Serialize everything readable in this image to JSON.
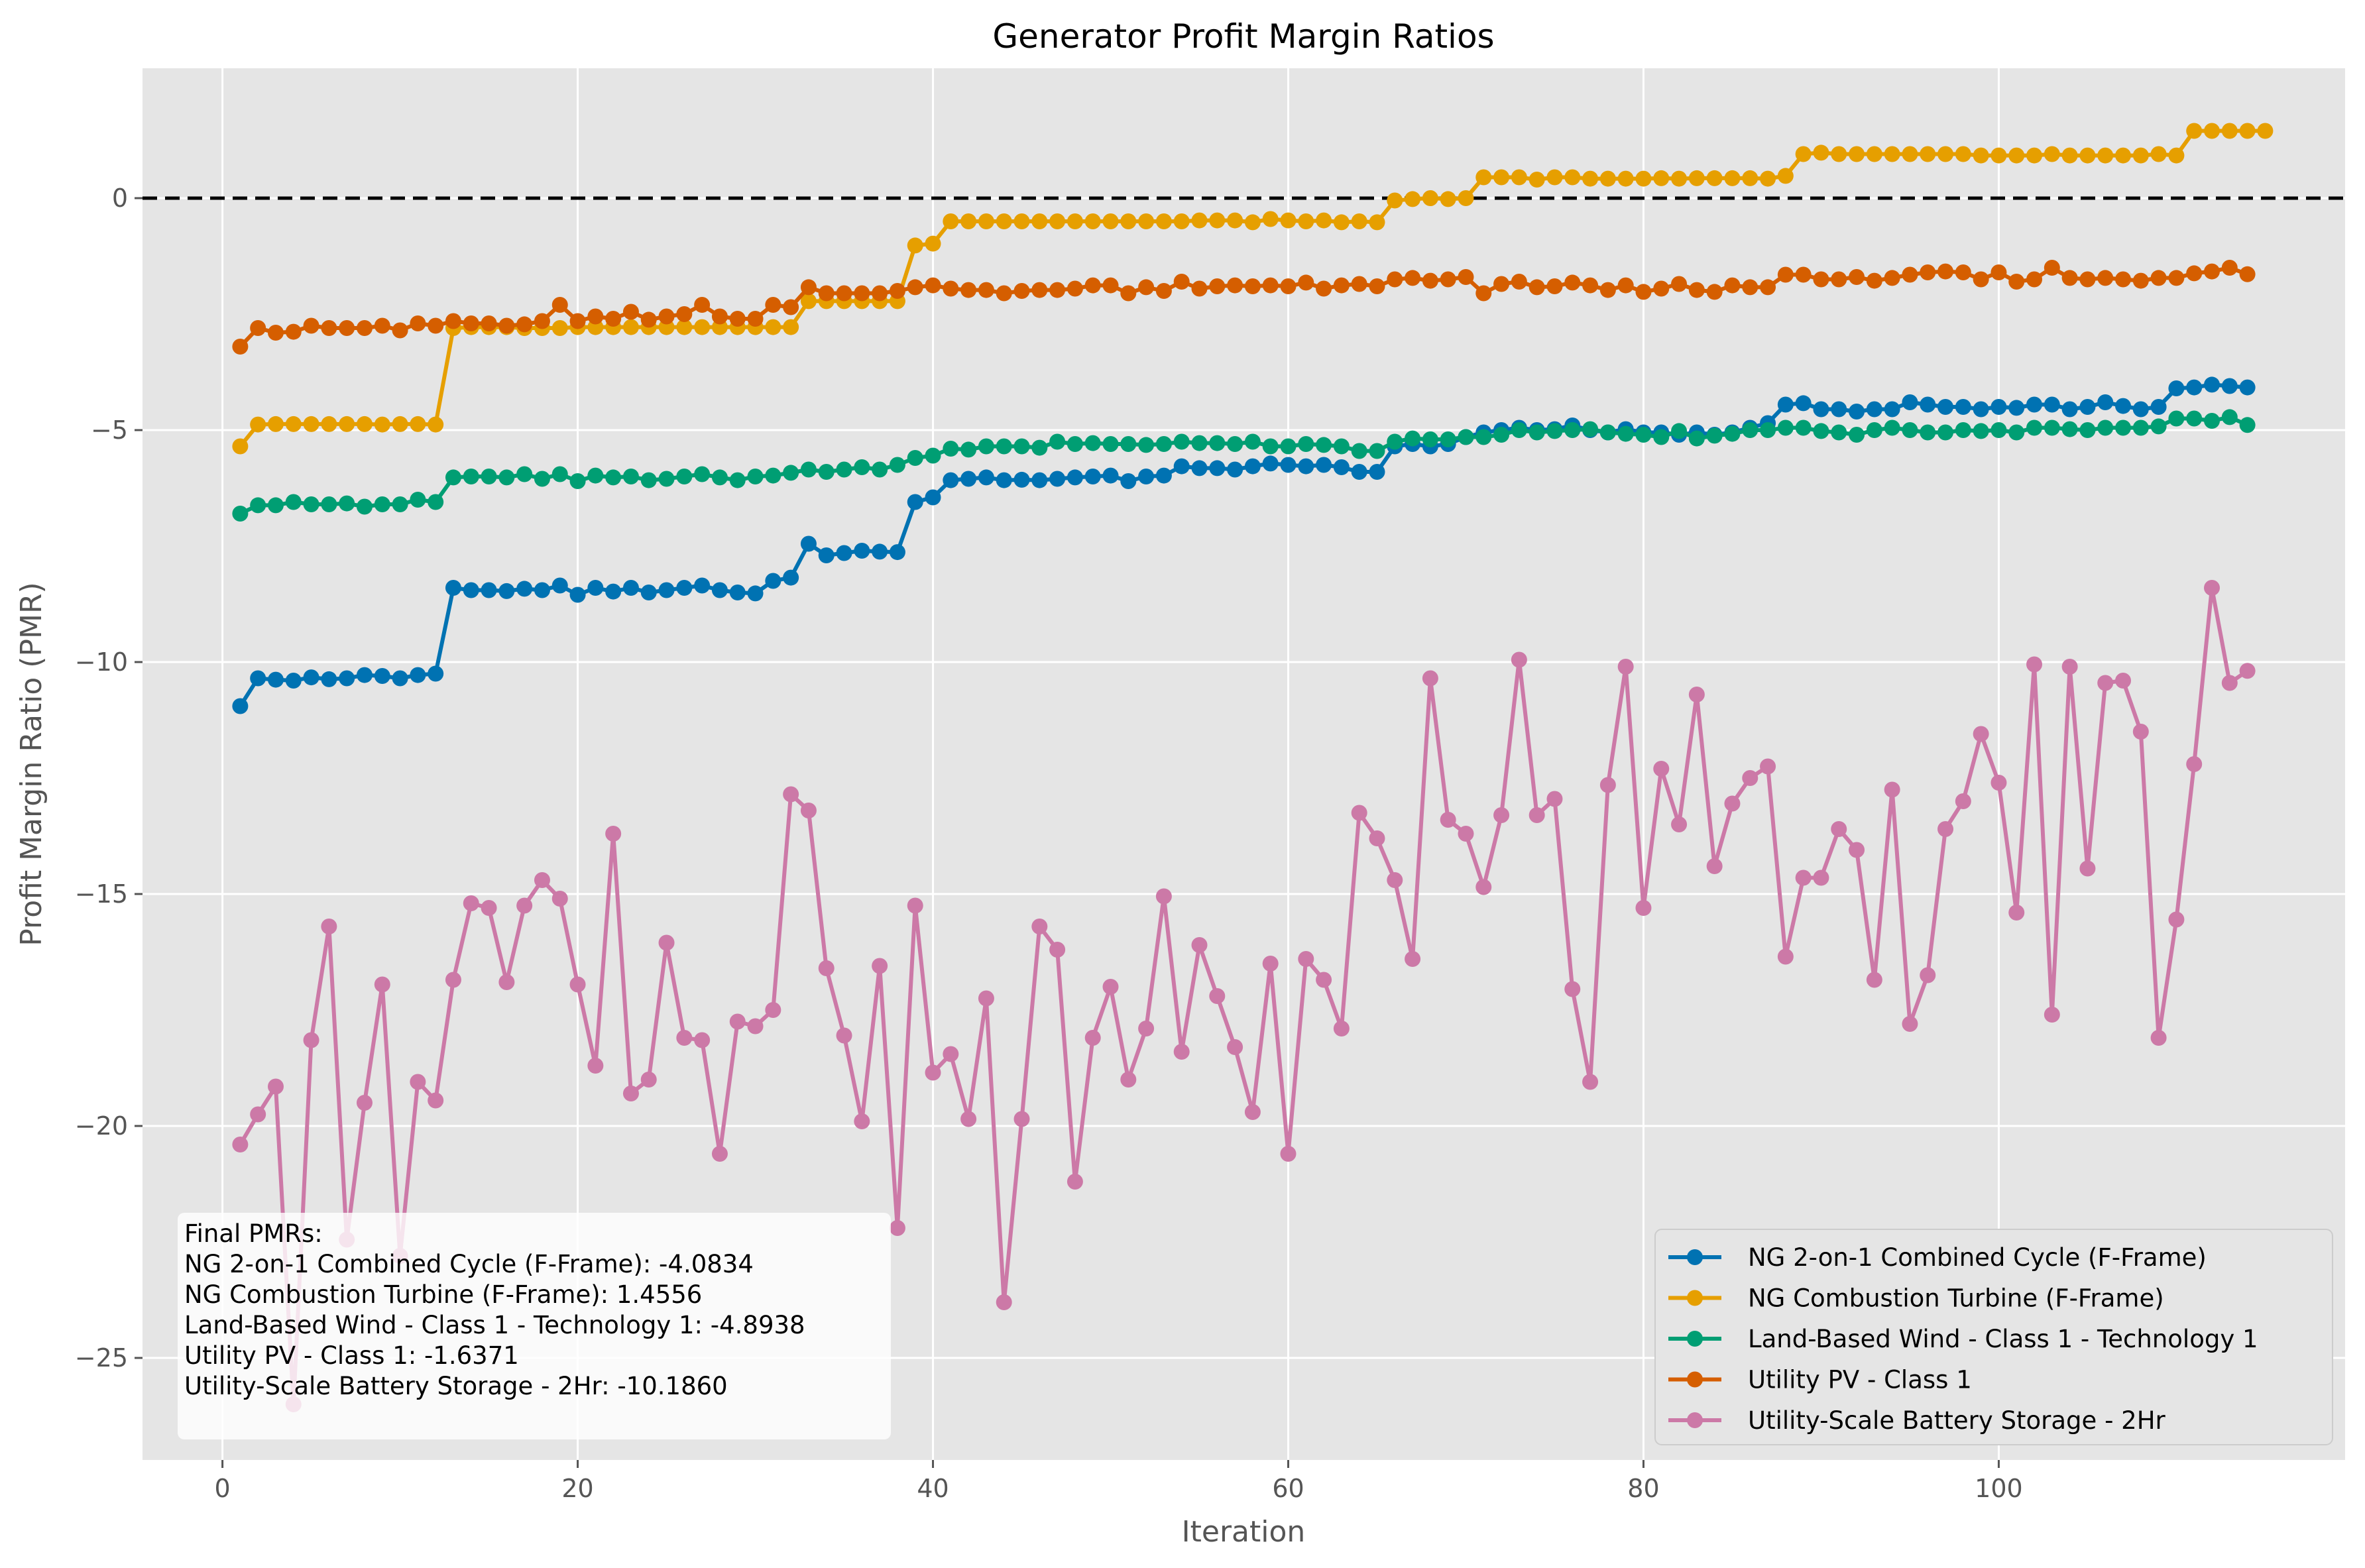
{
  "chart_data": {
    "type": "line",
    "title": "Generator Profit Margin Ratios",
    "xlabel": "Iteration",
    "ylabel": "Profit Margin Ratio (PMR)",
    "xlim": [
      -4.5,
      119.5
    ],
    "ylim": [
      -27.2,
      2.8
    ],
    "xticks": [
      0,
      20,
      40,
      60,
      80,
      100
    ],
    "yticks": [
      0,
      -5,
      -10,
      -15,
      -20,
      -25
    ],
    "grid": true,
    "reference_line": 0,
    "legend_position": "lower-right",
    "colors": {
      "background": "#e5e5e5",
      "grid": "#ffffff",
      "reference_line": "#000000"
    },
    "annotation": {
      "lines": [
        "Final PMRs:",
        "NG 2-on-1 Combined Cycle (F-Frame): -4.0834",
        "NG Combustion Turbine (F-Frame): 1.4556",
        "Land-Based Wind - Class 1 - Technology 1: -4.8938",
        "Utility PV - Class 1: -1.6371",
        "Utility-Scale Battery Storage - 2Hr: -10.1860"
      ]
    },
    "series": [
      {
        "name": "NG 2-on-1 Combined Cycle (F-Frame)",
        "color": "#0072b2",
        "values": [
          -10.95,
          -10.35,
          -10.38,
          -10.4,
          -10.33,
          -10.37,
          -10.35,
          -10.28,
          -10.3,
          -10.35,
          -10.28,
          -10.25,
          -8.4,
          -8.45,
          -8.45,
          -8.47,
          -8.42,
          -8.45,
          -8.35,
          -8.55,
          -8.4,
          -8.48,
          -8.4,
          -8.5,
          -8.45,
          -8.4,
          -8.35,
          -8.45,
          -8.5,
          -8.52,
          -8.25,
          -8.18,
          -7.45,
          -7.7,
          -7.65,
          -7.6,
          -7.62,
          -7.63,
          -6.55,
          -6.45,
          -6.08,
          -6.05,
          -6.02,
          -6.08,
          -6.07,
          -6.08,
          -6.05,
          -6.02,
          -6.0,
          -5.98,
          -6.1,
          -6.0,
          -5.98,
          -5.78,
          -5.82,
          -5.82,
          -5.85,
          -5.78,
          -5.72,
          -5.75,
          -5.78,
          -5.75,
          -5.8,
          -5.9,
          -5.9,
          -5.35,
          -5.3,
          -5.35,
          -5.3,
          -5.15,
          -5.05,
          -5.0,
          -4.95,
          -5.0,
          -4.98,
          -4.9,
          -5.0,
          -5.05,
          -4.98,
          -5.05,
          -5.05,
          -5.1,
          -5.05,
          -5.1,
          -5.05,
          -4.95,
          -4.85,
          -4.45,
          -4.42,
          -4.55,
          -4.55,
          -4.6,
          -4.55,
          -4.55,
          -4.4,
          -4.45,
          -4.5,
          -4.5,
          -4.55,
          -4.5,
          -4.52,
          -4.45,
          -4.45,
          -4.55,
          -4.5,
          -4.4,
          -4.48,
          -4.55,
          -4.5,
          -4.1,
          -4.08,
          -4.02,
          -4.05,
          -4.08
        ]
      },
      {
        "name": "NG Combustion Turbine (F-Frame)",
        "color": "#e69f00",
        "values": [
          -5.35,
          -4.88,
          -4.87,
          -4.87,
          -4.87,
          -4.87,
          -4.87,
          -4.87,
          -4.88,
          -4.87,
          -4.87,
          -4.88,
          -2.8,
          -2.78,
          -2.78,
          -2.78,
          -2.8,
          -2.8,
          -2.8,
          -2.78,
          -2.78,
          -2.78,
          -2.78,
          -2.78,
          -2.78,
          -2.78,
          -2.78,
          -2.78,
          -2.78,
          -2.78,
          -2.78,
          -2.78,
          -2.22,
          -2.22,
          -2.22,
          -2.22,
          -2.22,
          -2.22,
          -1.02,
          -0.98,
          -0.5,
          -0.5,
          -0.5,
          -0.5,
          -0.5,
          -0.5,
          -0.5,
          -0.5,
          -0.5,
          -0.5,
          -0.5,
          -0.5,
          -0.5,
          -0.5,
          -0.48,
          -0.48,
          -0.48,
          -0.52,
          -0.45,
          -0.48,
          -0.5,
          -0.48,
          -0.52,
          -0.5,
          -0.52,
          -0.05,
          -0.02,
          0.0,
          -0.02,
          0.0,
          0.45,
          0.45,
          0.45,
          0.4,
          0.45,
          0.45,
          0.42,
          0.42,
          0.42,
          0.42,
          0.43,
          0.42,
          0.43,
          0.43,
          0.43,
          0.43,
          0.42,
          0.48,
          0.95,
          0.98,
          0.95,
          0.95,
          0.95,
          0.95,
          0.95,
          0.95,
          0.95,
          0.95,
          0.92,
          0.92,
          0.92,
          0.92,
          0.95,
          0.92,
          0.92,
          0.92,
          0.92,
          0.92,
          0.95,
          0.92,
          1.45,
          1.45,
          1.45,
          1.45,
          1.45
        ]
      },
      {
        "name": "Land-Based Wind - Class 1 - Technology 1",
        "color": "#009e73",
        "values": [
          -6.8,
          -6.62,
          -6.62,
          -6.55,
          -6.6,
          -6.6,
          -6.58,
          -6.65,
          -6.6,
          -6.6,
          -6.5,
          -6.55,
          -6.02,
          -6.0,
          -6.0,
          -6.02,
          -5.95,
          -6.05,
          -5.95,
          -6.1,
          -5.98,
          -6.02,
          -6.0,
          -6.08,
          -6.05,
          -6.0,
          -5.95,
          -6.02,
          -6.08,
          -6.0,
          -5.98,
          -5.92,
          -5.85,
          -5.9,
          -5.85,
          -5.8,
          -5.85,
          -5.75,
          -5.6,
          -5.55,
          -5.4,
          -5.42,
          -5.35,
          -5.35,
          -5.35,
          -5.38,
          -5.25,
          -5.3,
          -5.28,
          -5.3,
          -5.3,
          -5.32,
          -5.3,
          -5.25,
          -5.28,
          -5.28,
          -5.3,
          -5.25,
          -5.35,
          -5.35,
          -5.3,
          -5.32,
          -5.35,
          -5.45,
          -5.45,
          -5.25,
          -5.18,
          -5.2,
          -5.2,
          -5.15,
          -5.15,
          -5.1,
          -5.0,
          -5.05,
          -5.02,
          -5.0,
          -4.98,
          -5.05,
          -5.08,
          -5.1,
          -5.15,
          -5.02,
          -5.18,
          -5.12,
          -5.08,
          -5.0,
          -5.0,
          -4.95,
          -4.95,
          -5.02,
          -5.05,
          -5.1,
          -5.0,
          -4.95,
          -5.0,
          -5.05,
          -5.05,
          -5.0,
          -5.02,
          -5.0,
          -5.05,
          -4.95,
          -4.95,
          -4.98,
          -5.0,
          -4.95,
          -4.95,
          -4.95,
          -4.92,
          -4.75,
          -4.75,
          -4.8,
          -4.72,
          -4.89
        ]
      },
      {
        "name": "Utility PV - Class 1",
        "color": "#d55e00",
        "values": [
          -3.2,
          -2.8,
          -2.9,
          -2.88,
          -2.75,
          -2.8,
          -2.8,
          -2.8,
          -2.75,
          -2.85,
          -2.7,
          -2.75,
          -2.65,
          -2.7,
          -2.7,
          -2.75,
          -2.72,
          -2.65,
          -2.3,
          -2.65,
          -2.55,
          -2.6,
          -2.45,
          -2.62,
          -2.55,
          -2.5,
          -2.3,
          -2.55,
          -2.6,
          -2.6,
          -2.3,
          -2.35,
          -1.92,
          -2.05,
          -2.05,
          -2.05,
          -2.05,
          -2.0,
          -1.92,
          -1.88,
          -1.95,
          -1.98,
          -1.98,
          -2.05,
          -2.0,
          -1.98,
          -1.98,
          -1.95,
          -1.88,
          -1.88,
          -2.05,
          -1.92,
          -2.0,
          -1.8,
          -1.95,
          -1.9,
          -1.88,
          -1.9,
          -1.88,
          -1.9,
          -1.82,
          -1.95,
          -1.88,
          -1.85,
          -1.9,
          -1.75,
          -1.72,
          -1.78,
          -1.75,
          -1.7,
          -2.05,
          -1.85,
          -1.8,
          -1.92,
          -1.9,
          -1.82,
          -1.88,
          -1.98,
          -1.88,
          -2.02,
          -1.95,
          -1.85,
          -1.98,
          -2.02,
          -1.88,
          -1.92,
          -1.92,
          -1.65,
          -1.65,
          -1.75,
          -1.75,
          -1.7,
          -1.78,
          -1.72,
          -1.65,
          -1.6,
          -1.58,
          -1.6,
          -1.75,
          -1.6,
          -1.8,
          -1.75,
          -1.5,
          -1.72,
          -1.75,
          -1.72,
          -1.75,
          -1.78,
          -1.72,
          -1.72,
          -1.62,
          -1.58,
          -1.5,
          -1.64
        ]
      },
      {
        "name": "Utility-Scale Battery Storage - 2Hr",
        "color": "#cc79a7",
        "values": [
          -20.4,
          -19.75,
          -19.15,
          -26.0,
          -18.15,
          -15.7,
          -22.45,
          -19.5,
          -16.95,
          -22.8,
          -19.05,
          -19.45,
          -16.85,
          -15.2,
          -15.3,
          -16.9,
          -15.25,
          -14.7,
          -15.1,
          -16.95,
          -18.7,
          -13.7,
          -19.3,
          -19.0,
          -16.05,
          -18.1,
          -18.15,
          -20.6,
          -17.75,
          -17.85,
          -17.5,
          -12.85,
          -13.2,
          -16.6,
          -18.05,
          -19.9,
          -16.55,
          -22.2,
          -15.25,
          -18.85,
          -18.45,
          -19.85,
          -17.25,
          -23.8,
          -19.85,
          -15.7,
          -16.2,
          -21.2,
          -18.1,
          -17.0,
          -19.0,
          -17.9,
          -15.05,
          -18.4,
          -16.1,
          -17.2,
          -18.3,
          -19.7,
          -16.5,
          -20.6,
          -16.4,
          -16.85,
          -17.9,
          -13.25,
          -13.8,
          -14.7,
          -16.4,
          -10.35,
          -13.4,
          -13.7,
          -14.85,
          -13.3,
          -9.95,
          -13.3,
          -12.95,
          -17.05,
          -19.05,
          -12.65,
          -10.1,
          -15.3,
          -12.3,
          -13.5,
          -10.7,
          -14.4,
          -13.05,
          -12.5,
          -12.25,
          -16.35,
          -14.65,
          -14.65,
          -13.6,
          -14.05,
          -16.85,
          -12.75,
          -17.8,
          -16.75,
          -13.6,
          -13.0,
          -11.55,
          -12.6,
          -15.4,
          -10.05,
          -17.6,
          -10.1,
          -14.45,
          -10.45,
          -10.4,
          -11.5,
          -18.1,
          -15.55,
          -12.2,
          -8.4,
          -10.45,
          -10.19
        ]
      }
    ]
  }
}
